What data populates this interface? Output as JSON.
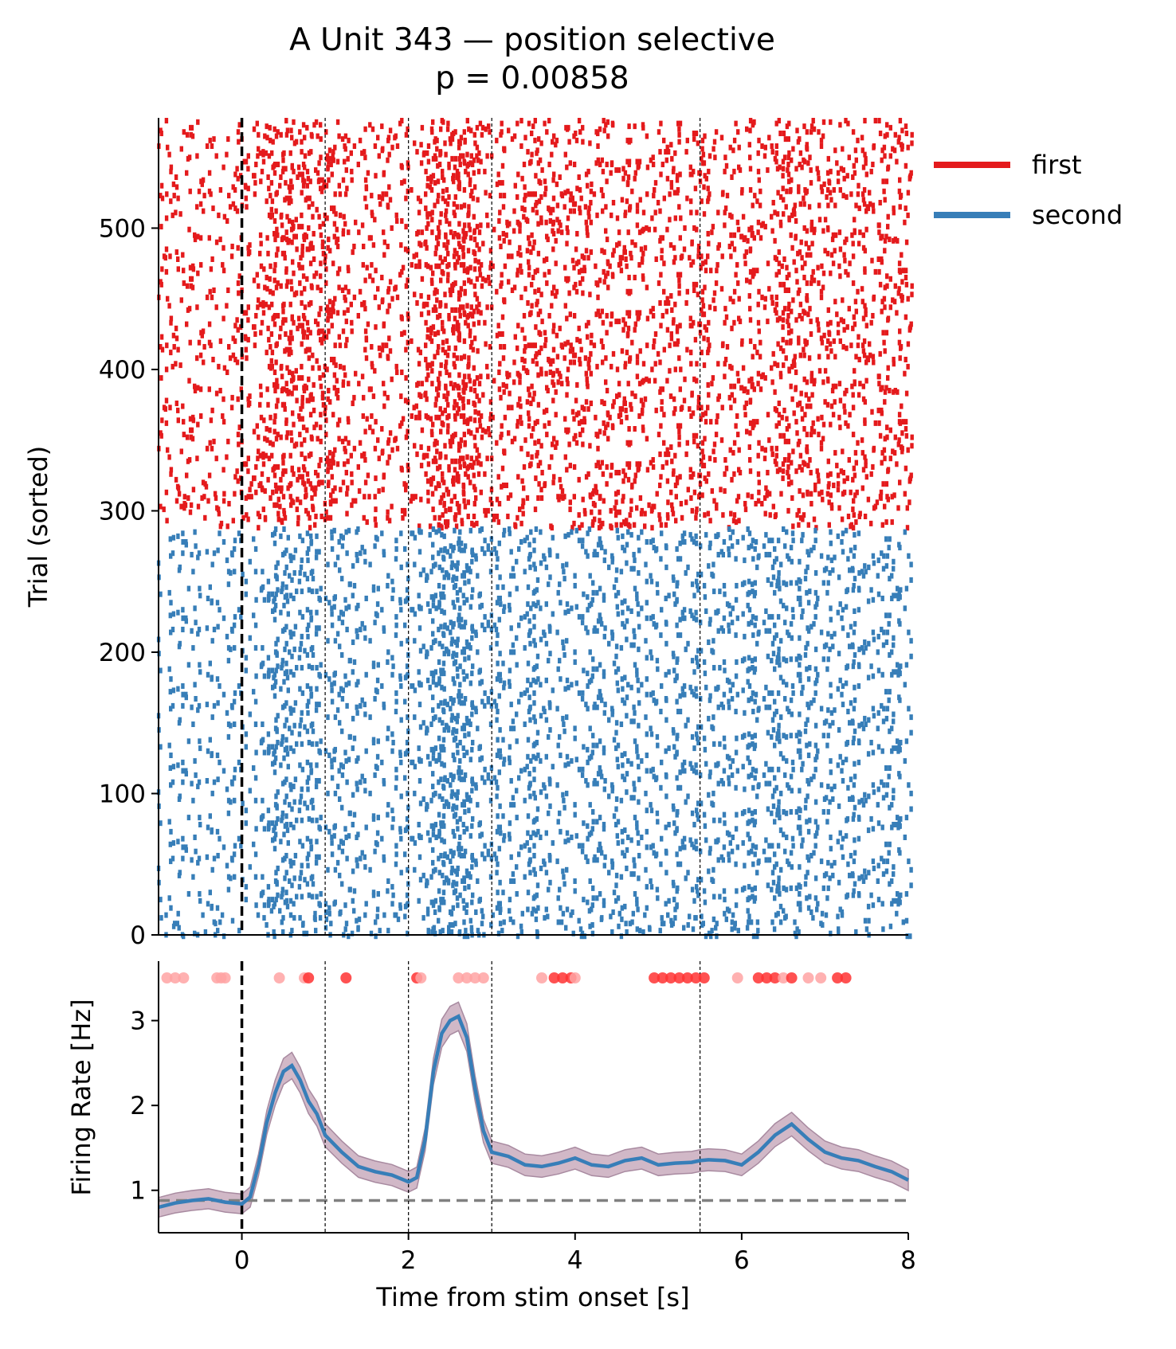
{
  "chart_data": [
    {
      "type": "raster",
      "title": "A Unit 343 — position selective",
      "subtitle": "p = 0.00858",
      "ylabel": "Trial (sorted)",
      "xlim": [
        -1,
        8
      ],
      "ylim": [
        0,
        578
      ],
      "yticks": [
        0,
        100,
        200,
        300,
        400,
        500
      ],
      "event_lines": [
        0,
        1,
        2,
        3,
        5.5
      ],
      "series": [
        {
          "name": "first",
          "color": "#e41a1c",
          "trial_range": [
            289,
            578
          ]
        },
        {
          "name": "second",
          "color": "#377eb8",
          "trial_range": [
            0,
            289
          ]
        }
      ],
      "legend_position": "upper-right-outside"
    },
    {
      "type": "line",
      "xlabel": "Time from stim onset [s]",
      "ylabel": "Firing Rate [Hz]",
      "xlim": [
        -1,
        8
      ],
      "ylim": [
        0.5,
        3.7
      ],
      "xticks": [
        0,
        2,
        4,
        6,
        8
      ],
      "yticks": [
        1,
        2,
        3
      ],
      "baseline": 0.88,
      "event_lines": [
        0,
        1,
        2,
        3,
        5.5
      ],
      "x": [
        -1.0,
        -0.8,
        -0.6,
        -0.4,
        -0.2,
        0.0,
        0.1,
        0.2,
        0.3,
        0.4,
        0.5,
        0.6,
        0.7,
        0.8,
        0.9,
        1.0,
        1.2,
        1.4,
        1.6,
        1.8,
        2.0,
        2.1,
        2.2,
        2.3,
        2.4,
        2.5,
        2.6,
        2.7,
        2.8,
        2.9,
        3.0,
        3.2,
        3.4,
        3.6,
        3.8,
        4.0,
        4.2,
        4.4,
        4.6,
        4.8,
        5.0,
        5.2,
        5.4,
        5.5,
        5.6,
        5.8,
        6.0,
        6.2,
        6.4,
        6.6,
        6.8,
        7.0,
        7.2,
        7.4,
        7.6,
        7.8,
        8.0
      ],
      "y": [
        0.8,
        0.85,
        0.88,
        0.9,
        0.86,
        0.84,
        0.92,
        1.3,
        1.8,
        2.15,
        2.4,
        2.47,
        2.3,
        2.05,
        1.9,
        1.65,
        1.45,
        1.28,
        1.22,
        1.18,
        1.1,
        1.15,
        1.6,
        2.4,
        2.85,
        3.0,
        3.05,
        2.8,
        2.2,
        1.7,
        1.45,
        1.4,
        1.3,
        1.28,
        1.32,
        1.38,
        1.3,
        1.28,
        1.35,
        1.38,
        1.3,
        1.32,
        1.33,
        1.35,
        1.36,
        1.35,
        1.3,
        1.45,
        1.65,
        1.78,
        1.6,
        1.45,
        1.38,
        1.35,
        1.28,
        1.22,
        1.12
      ],
      "ci_halfwidth": 0.12,
      "line_color": "#377eb8",
      "band_color": "#c9abbd",
      "significance_points": [
        {
          "x": -0.9,
          "strength": "weak"
        },
        {
          "x": -0.8,
          "strength": "weak"
        },
        {
          "x": -0.7,
          "strength": "weak"
        },
        {
          "x": -0.3,
          "strength": "weak"
        },
        {
          "x": -0.25,
          "strength": "weak"
        },
        {
          "x": -0.2,
          "strength": "weak"
        },
        {
          "x": 0.45,
          "strength": "weak"
        },
        {
          "x": 0.75,
          "strength": "weak"
        },
        {
          "x": 0.8,
          "strength": "strong"
        },
        {
          "x": 1.25,
          "strength": "strong"
        },
        {
          "x": 2.1,
          "strength": "strong"
        },
        {
          "x": 2.15,
          "strength": "weak"
        },
        {
          "x": 2.6,
          "strength": "weak"
        },
        {
          "x": 2.7,
          "strength": "weak"
        },
        {
          "x": 2.8,
          "strength": "weak"
        },
        {
          "x": 2.9,
          "strength": "weak"
        },
        {
          "x": 3.6,
          "strength": "weak"
        },
        {
          "x": 3.75,
          "strength": "strong"
        },
        {
          "x": 3.85,
          "strength": "strong"
        },
        {
          "x": 3.95,
          "strength": "strong"
        },
        {
          "x": 4.0,
          "strength": "weak"
        },
        {
          "x": 4.95,
          "strength": "strong"
        },
        {
          "x": 5.05,
          "strength": "strong"
        },
        {
          "x": 5.15,
          "strength": "strong"
        },
        {
          "x": 5.25,
          "strength": "strong"
        },
        {
          "x": 5.35,
          "strength": "strong"
        },
        {
          "x": 5.45,
          "strength": "strong"
        },
        {
          "x": 5.55,
          "strength": "strong"
        },
        {
          "x": 5.95,
          "strength": "weak"
        },
        {
          "x": 6.2,
          "strength": "strong"
        },
        {
          "x": 6.3,
          "strength": "strong"
        },
        {
          "x": 6.4,
          "strength": "strong"
        },
        {
          "x": 6.5,
          "strength": "weak"
        },
        {
          "x": 6.6,
          "strength": "strong"
        },
        {
          "x": 6.8,
          "strength": "weak"
        },
        {
          "x": 6.95,
          "strength": "weak"
        },
        {
          "x": 7.15,
          "strength": "strong"
        },
        {
          "x": 7.25,
          "strength": "strong"
        }
      ]
    }
  ]
}
